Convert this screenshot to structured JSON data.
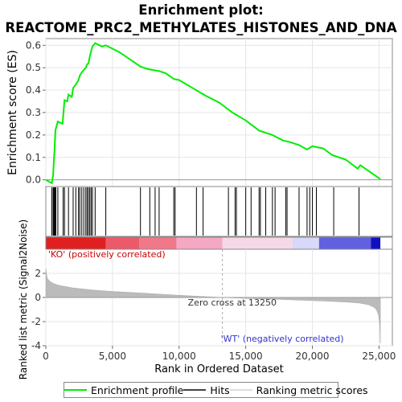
{
  "title_line1": "Enrichment plot:",
  "title_line2": "REACTOME_PRC2_METHYLATES_HISTONES_AND_DNA",
  "chart_data": {
    "type": "line",
    "es_ylabel": "Enrichment score (ES)",
    "metric_ylabel": "Ranked list metric (Signal2Noise)",
    "xlabel": "Rank in Ordered Dataset",
    "xlim": [
      0,
      26000
    ],
    "x_ticks": [
      0,
      5000,
      10000,
      15000,
      20000,
      25000
    ],
    "x_tick_labels": [
      "0",
      "5,000",
      "10,000",
      "15,000",
      "20,000",
      "25,000"
    ],
    "es_ylim": [
      -0.03,
      0.63
    ],
    "es_ticks": [
      0.0,
      0.1,
      0.2,
      0.3,
      0.4,
      0.5,
      0.6
    ],
    "es_tick_labels": [
      "0.0",
      "0.1",
      "0.2",
      "0.3",
      "0.4",
      "0.5",
      "0.6"
    ],
    "metric_ylim": [
      -4,
      4
    ],
    "metric_ticks": [
      2,
      0,
      -2,
      -4
    ],
    "metric_tick_labels": [
      "2",
      "0",
      "-2",
      "-4"
    ],
    "zero_cross": 13250,
    "zero_cross_text": "Zero cross at 13250",
    "pos_label": "'KO' (positively correlated)",
    "neg_label": "'WT' (negatively correlated)",
    "es_curve": [
      [
        0,
        0.0
      ],
      [
        450,
        -0.015
      ],
      [
        550,
        0.02
      ],
      [
        600,
        0.08
      ],
      [
        650,
        0.13
      ],
      [
        720,
        0.22
      ],
      [
        900,
        0.26
      ],
      [
        1250,
        0.25
      ],
      [
        1300,
        0.28
      ],
      [
        1400,
        0.355
      ],
      [
        1600,
        0.35
      ],
      [
        1700,
        0.38
      ],
      [
        1950,
        0.37
      ],
      [
        2050,
        0.41
      ],
      [
        2250,
        0.425
      ],
      [
        2450,
        0.445
      ],
      [
        2550,
        0.465
      ],
      [
        2700,
        0.48
      ],
      [
        2850,
        0.49
      ],
      [
        3000,
        0.5
      ],
      [
        3100,
        0.515
      ],
      [
        3200,
        0.52
      ],
      [
        3300,
        0.55
      ],
      [
        3400,
        0.575
      ],
      [
        3500,
        0.595
      ],
      [
        3700,
        0.61
      ],
      [
        4200,
        0.595
      ],
      [
        4500,
        0.6
      ],
      [
        5500,
        0.57
      ],
      [
        6500,
        0.53
      ],
      [
        7100,
        0.505
      ],
      [
        7600,
        0.495
      ],
      [
        8000,
        0.49
      ],
      [
        8500,
        0.485
      ],
      [
        9000,
        0.475
      ],
      [
        9600,
        0.45
      ],
      [
        10000,
        0.445
      ],
      [
        11000,
        0.41
      ],
      [
        12000,
        0.375
      ],
      [
        13000,
        0.345
      ],
      [
        14000,
        0.3
      ],
      [
        15000,
        0.265
      ],
      [
        16000,
        0.22
      ],
      [
        17000,
        0.2
      ],
      [
        17800,
        0.175
      ],
      [
        18200,
        0.17
      ],
      [
        19000,
        0.155
      ],
      [
        19600,
        0.135
      ],
      [
        20000,
        0.15
      ],
      [
        20800,
        0.14
      ],
      [
        21500,
        0.11
      ],
      [
        22500,
        0.09
      ],
      [
        23400,
        0.05
      ],
      [
        23600,
        0.065
      ],
      [
        25100,
        0.003
      ]
    ],
    "hits": [
      450,
      550,
      600,
      650,
      700,
      750,
      900,
      1300,
      1400,
      1700,
      2050,
      2250,
      2450,
      2550,
      2700,
      2850,
      3000,
      3100,
      3200,
      3300,
      3400,
      3500,
      3700,
      4500,
      7100,
      7800,
      8200,
      8500,
      9600,
      9700,
      11300,
      11800,
      13700,
      14200,
      14300,
      15000,
      15400,
      16000,
      16100,
      16500,
      17000,
      17200,
      18000,
      18100,
      19000,
      19600,
      19800,
      20000,
      20300,
      21600,
      23500
    ],
    "metric_curve": [
      [
        0,
        2.4
      ],
      [
        100,
        1.6
      ],
      [
        300,
        1.35
      ],
      [
        600,
        1.15
      ],
      [
        1000,
        1.0
      ],
      [
        2000,
        0.8
      ],
      [
        3500,
        0.62
      ],
      [
        5000,
        0.5
      ],
      [
        7000,
        0.38
      ],
      [
        9000,
        0.25
      ],
      [
        11000,
        0.13
      ],
      [
        13250,
        0.0
      ],
      [
        15000,
        -0.07
      ],
      [
        17000,
        -0.14
      ],
      [
        19000,
        -0.22
      ],
      [
        21000,
        -0.3
      ],
      [
        22500,
        -0.38
      ],
      [
        23500,
        -0.46
      ],
      [
        24200,
        -0.6
      ],
      [
        24600,
        -0.8
      ],
      [
        24800,
        -1.0
      ],
      [
        24950,
        -1.4
      ],
      [
        25050,
        -2.2
      ],
      [
        25100,
        -3.8
      ]
    ],
    "colors": {
      "es_line": "#00ee00",
      "hit": "#000000",
      "metric_fill": "#bbbbbb",
      "zero_cross_line": "#aaaaaa",
      "pos_label": "#cc0000",
      "neg_label": "#3333cc",
      "bar_red": "#e02020",
      "bar_pink": "#f4a8c4",
      "bar_light": "#f7d8e8",
      "bar_lightblue": "#d8d8f8",
      "bar_blue": "#6060e0",
      "bar_darkblue": "#1010c0"
    }
  },
  "legend": {
    "items": [
      {
        "label": "Enrichment profile",
        "color": "#00ee00"
      },
      {
        "label": "Hits",
        "color": "#444444"
      },
      {
        "label": "Ranking metric scores",
        "color": "#dddddd"
      }
    ]
  }
}
